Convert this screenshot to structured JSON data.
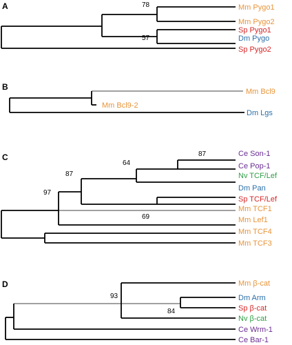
{
  "colors": {
    "orange": "#E8943A",
    "red": "#D62728",
    "blue": "#2A6FA8",
    "purple": "#6A2C91",
    "green": "#2E9E44"
  },
  "panels": [
    {
      "letter": "A",
      "taxa": [
        {
          "label": "Mm Pygo1",
          "color": "orange"
        },
        {
          "label": "Mm Pygo2",
          "color": "orange"
        },
        {
          "label": "Sp Pygo1",
          "color": "red"
        },
        {
          "label": "Dm Pygo",
          "color": "blue"
        },
        {
          "label": "Sp Pygo2",
          "color": "red"
        }
      ],
      "bootstrap": [
        "78",
        "57"
      ]
    },
    {
      "letter": "B",
      "taxa": [
        {
          "label": "Mm Bcl9",
          "color": "orange"
        },
        {
          "label": "Mm Bcl9-2",
          "color": "orange"
        },
        {
          "label": "Dm Lgs",
          "color": "blue"
        }
      ],
      "bootstrap": []
    },
    {
      "letter": "C",
      "taxa": [
        {
          "label": "Ce Son-1",
          "color": "purple"
        },
        {
          "label": "Ce Pop-1",
          "color": "purple"
        },
        {
          "label": "Nv TCF/Lef",
          "color": "green"
        },
        {
          "label": "Dm Pan",
          "color": "blue"
        },
        {
          "label": "Sp TCF/Lef",
          "color": "red"
        },
        {
          "label": "Mm TCF1",
          "color": "orange"
        },
        {
          "label": "Mm Lef1",
          "color": "orange"
        },
        {
          "label": "Mm TCF4",
          "color": "orange"
        },
        {
          "label": "Mm TCF3",
          "color": "orange"
        }
      ],
      "bootstrap": [
        "87",
        "64",
        "87",
        "97",
        "69"
      ]
    },
    {
      "letter": "D",
      "taxa": [
        {
          "label": "Mm β-cat",
          "color": "orange"
        },
        {
          "label": "Dm Arm",
          "color": "blue"
        },
        {
          "label": "Sp β-cat",
          "color": "red"
        },
        {
          "label": "Nv β-cat",
          "color": "green"
        },
        {
          "label": "Ce Wrm-1",
          "color": "purple"
        },
        {
          "label": "Ce Bar-1",
          "color": "purple"
        }
      ],
      "bootstrap": [
        "93",
        "84"
      ]
    }
  ]
}
